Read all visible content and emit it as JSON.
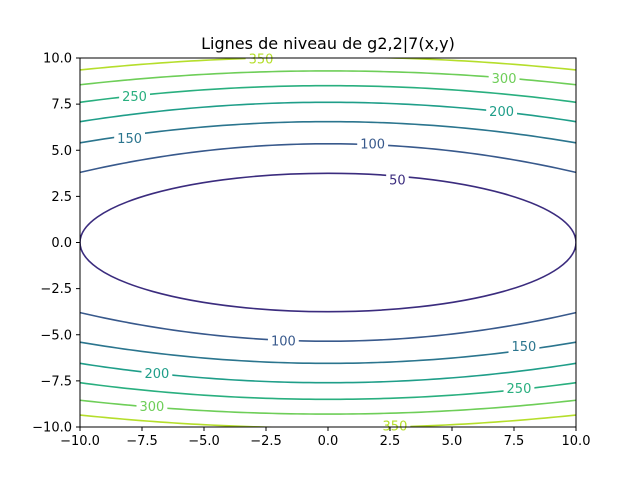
{
  "chart_data": {
    "type": "contour",
    "title": "Lignes de niveau de g2,2|7(x,y)",
    "xlabel": "",
    "ylabel": "",
    "xlim": [
      -10,
      10
    ],
    "ylim": [
      -10,
      10
    ],
    "xticks": [
      -10.0,
      -7.5,
      -5.0,
      -2.5,
      0.0,
      2.5,
      5.0,
      7.5,
      10.0
    ],
    "yticks": [
      -10.0,
      -7.5,
      -5.0,
      -2.5,
      0.0,
      2.5,
      5.0,
      7.5,
      10.0
    ],
    "xtick_labels": [
      "−10.0",
      "−7.5",
      "−5.0",
      "−2.5",
      "0.0",
      "2.5",
      "5.0",
      "7.5",
      "10.0"
    ],
    "ytick_labels": [
      "−10.0",
      "−7.5",
      "−5.0",
      "−2.5",
      "0.0",
      "2.5",
      "5.0",
      "7.5",
      "10.0"
    ],
    "grid": false,
    "levels": [
      {
        "value": 50,
        "label": "50",
        "color": "#3b2c7e"
      },
      {
        "value": 100,
        "label": "100",
        "color": "#38598c"
      },
      {
        "value": 150,
        "label": "150",
        "color": "#2b758e"
      },
      {
        "value": 200,
        "label": "200",
        "color": "#1f9e89"
      },
      {
        "value": 250,
        "label": "250",
        "color": "#29af7f"
      },
      {
        "value": 300,
        "label": "300",
        "color": "#6ece58"
      },
      {
        "value": 350,
        "label": "350",
        "color": "#b5de2b"
      }
    ],
    "contours": [
      {
        "level": 50,
        "kind": "ellipse",
        "x_semi_axis": 10,
        "y_semi_axis": 3.75,
        "labels": [
          {
            "x": 2.8,
            "y": 3.4
          }
        ]
      },
      {
        "level": 100,
        "kind": "pair",
        "y_center": 5.35,
        "y_edge": 3.8,
        "labels": [
          {
            "x": 1.8,
            "y": 5.35
          },
          {
            "x": -1.8,
            "y": -5.35
          }
        ]
      },
      {
        "level": 150,
        "kind": "pair",
        "y_center": 6.55,
        "y_edge": 5.4,
        "labels": [
          {
            "x": -8.0,
            "y": 5.65
          },
          {
            "x": 7.9,
            "y": -5.65
          }
        ]
      },
      {
        "level": 200,
        "kind": "pair",
        "y_center": 7.6,
        "y_edge": 6.55,
        "labels": [
          {
            "x": 7.0,
            "y": 7.1
          },
          {
            "x": -6.9,
            "y": -7.1
          }
        ]
      },
      {
        "level": 250,
        "kind": "pair",
        "y_center": 8.5,
        "y_edge": 7.6,
        "labels": [
          {
            "x": -7.8,
            "y": 7.9
          },
          {
            "x": 7.7,
            "y": -7.9
          }
        ]
      },
      {
        "level": 300,
        "kind": "pair",
        "y_center": 9.3,
        "y_edge": 8.55,
        "labels": [
          {
            "x": 7.1,
            "y": 8.9
          },
          {
            "x": -7.1,
            "y": -8.9
          }
        ]
      },
      {
        "level": 350,
        "kind": "pair",
        "y_center": 10.05,
        "y_edge": 9.35,
        "labels": [
          {
            "x": -2.7,
            "y": 9.95
          },
          {
            "x": 2.7,
            "y": -9.95
          }
        ]
      }
    ]
  }
}
